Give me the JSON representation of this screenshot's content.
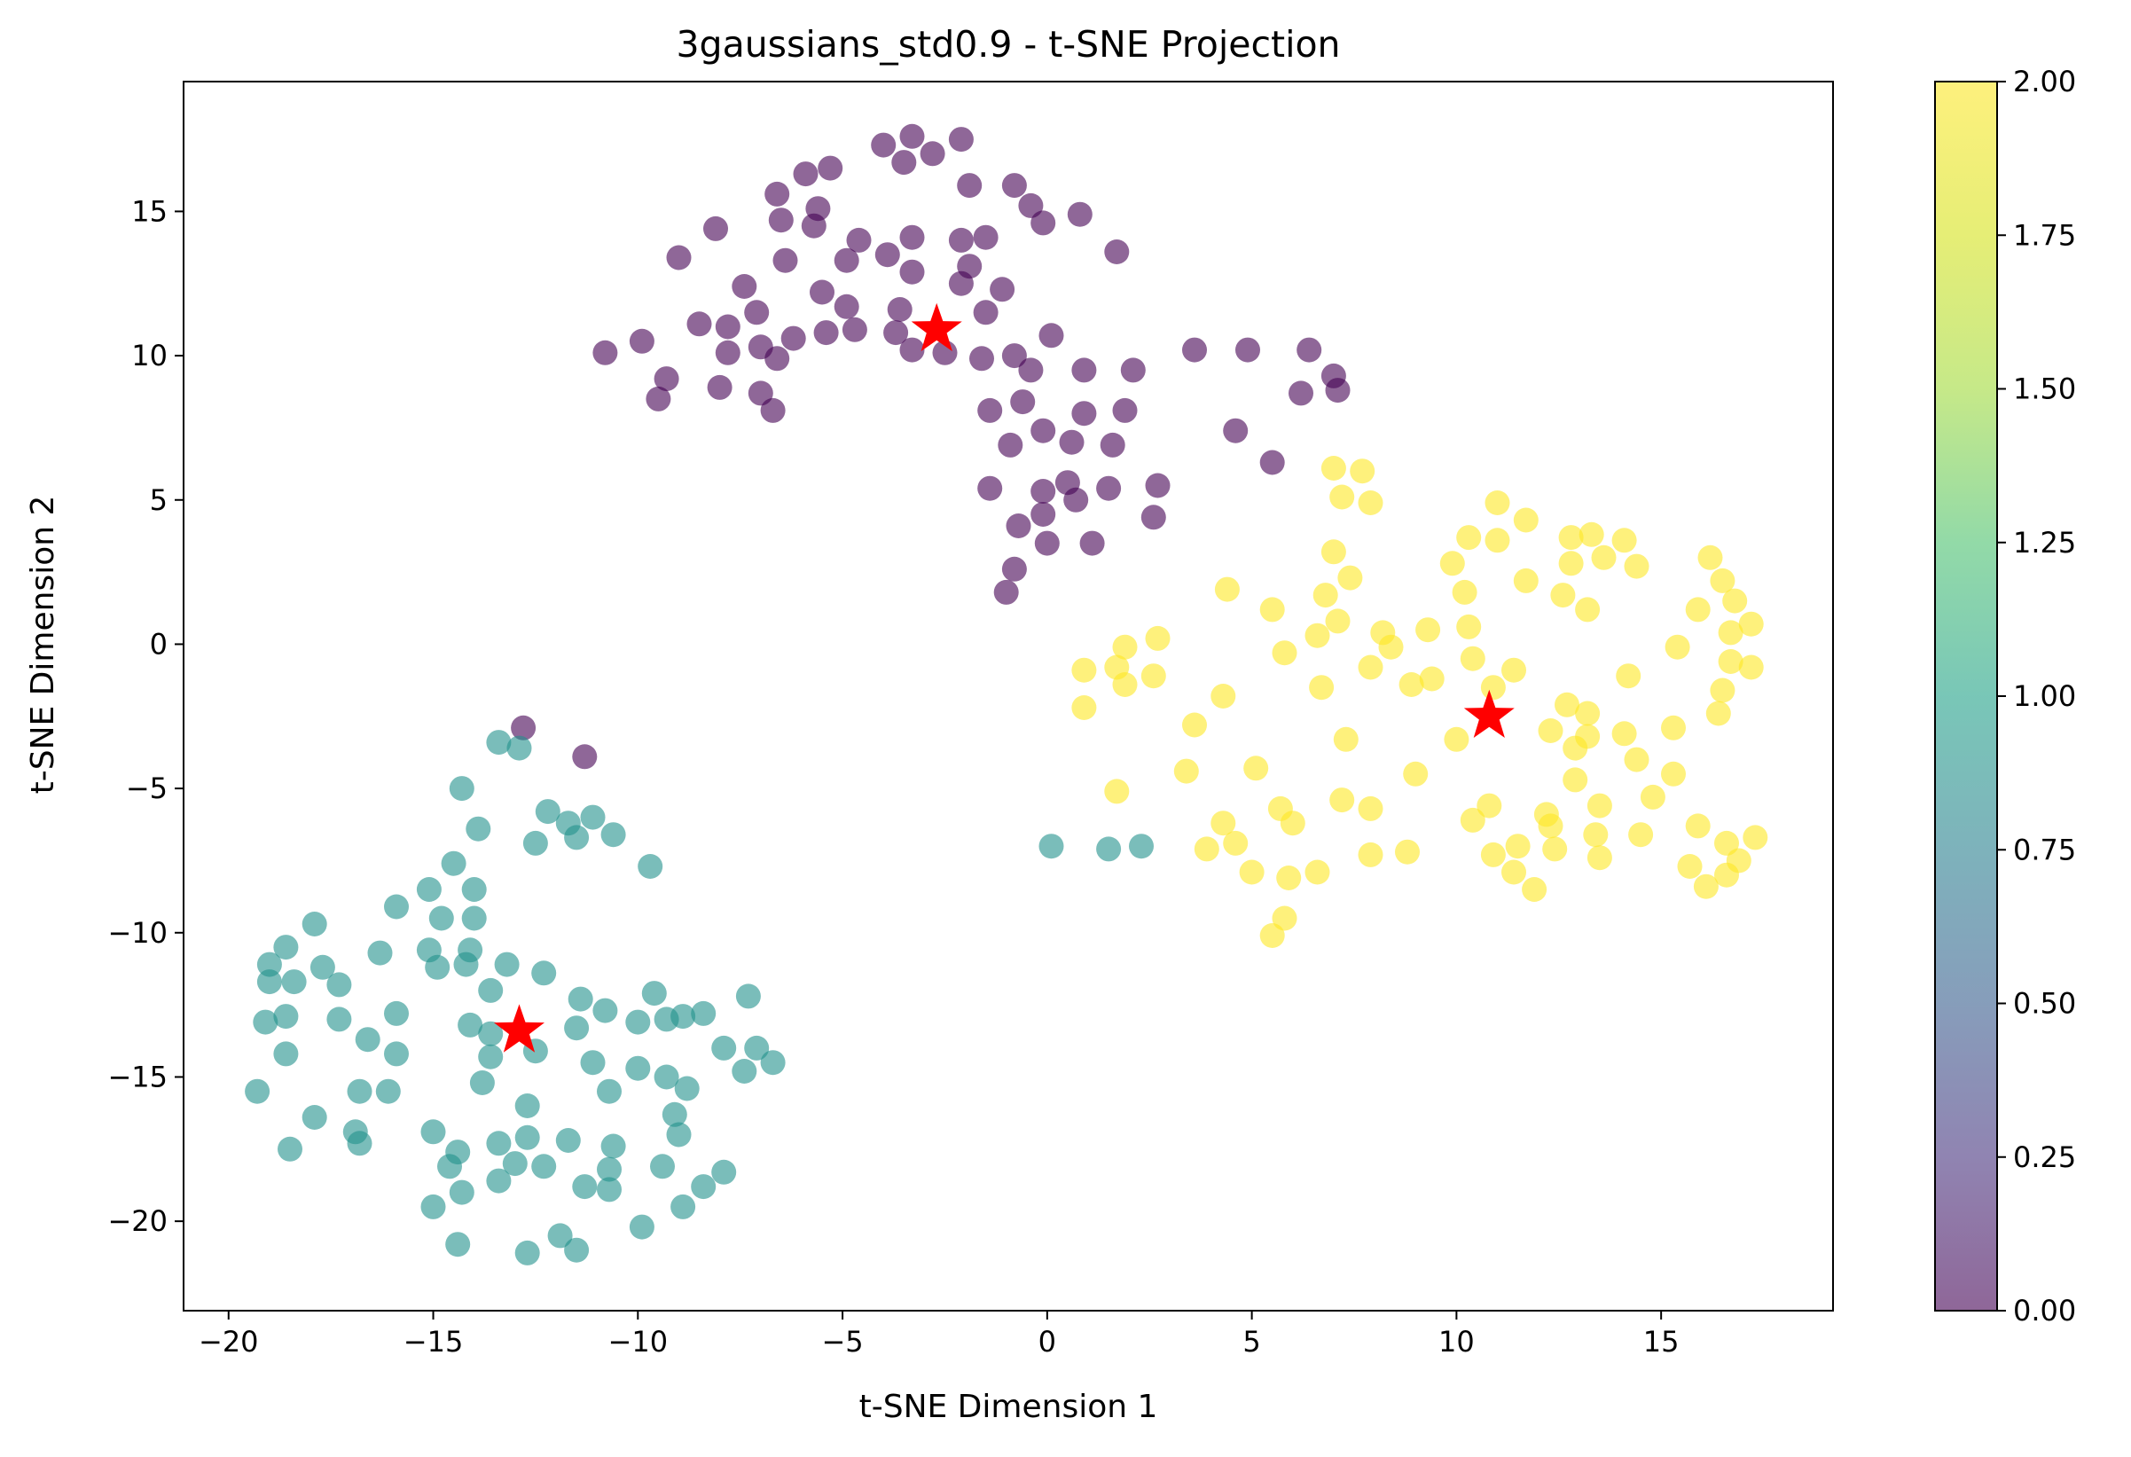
{
  "chart_data": {
    "type": "scatter",
    "title": "3gaussians_std0.9 - t-SNE Projection",
    "xlabel": "t-SNE Dimension 1",
    "ylabel": "t-SNE Dimension 2",
    "xlim": [
      -21.1,
      19.2
    ],
    "ylim": [
      -23.1,
      19.5
    ],
    "xticks": [
      -20,
      -15,
      -10,
      -5,
      0,
      5,
      10,
      15
    ],
    "yticks": [
      -20,
      -15,
      -10,
      -5,
      0,
      5,
      10,
      15
    ],
    "grid": false,
    "colormap": "viridis",
    "colorbar": {
      "range": [
        0.0,
        2.0
      ],
      "ticks": [
        "0.00",
        "0.25",
        "0.50",
        "0.75",
        "1.00",
        "1.25",
        "1.50",
        "1.75",
        "2.00"
      ]
    },
    "series": [
      {
        "value": 0,
        "color": "#440154",
        "points": [
          [
            -4.0,
            17.3
          ],
          [
            -3.3,
            17.6
          ],
          [
            -2.1,
            17.5
          ],
          [
            -3.5,
            16.7
          ],
          [
            -2.8,
            17.0
          ],
          [
            -5.3,
            16.5
          ],
          [
            -5.9,
            16.3
          ],
          [
            -6.6,
            15.6
          ],
          [
            -5.6,
            15.1
          ],
          [
            -6.5,
            14.7
          ],
          [
            -5.7,
            14.5
          ],
          [
            -8.1,
            14.4
          ],
          [
            -9.0,
            13.4
          ],
          [
            -6.4,
            13.3
          ],
          [
            -4.6,
            14.0
          ],
          [
            -3.3,
            14.1
          ],
          [
            -3.9,
            13.5
          ],
          [
            -4.9,
            13.3
          ],
          [
            -3.3,
            12.9
          ],
          [
            -2.1,
            14.0
          ],
          [
            -1.5,
            14.1
          ],
          [
            -1.9,
            13.1
          ],
          [
            -2.1,
            12.5
          ],
          [
            -1.1,
            12.3
          ],
          [
            -1.9,
            15.9
          ],
          [
            -0.8,
            15.9
          ],
          [
            -0.4,
            15.2
          ],
          [
            -0.1,
            14.6
          ],
          [
            0.8,
            14.9
          ],
          [
            1.7,
            13.6
          ],
          [
            -5.5,
            12.2
          ],
          [
            -4.9,
            11.7
          ],
          [
            -7.4,
            12.4
          ],
          [
            -7.1,
            11.5
          ],
          [
            -3.6,
            11.6
          ],
          [
            -3.7,
            10.8
          ],
          [
            -4.7,
            10.9
          ],
          [
            -5.4,
            10.8
          ],
          [
            -7.8,
            11.0
          ],
          [
            -8.5,
            11.1
          ],
          [
            -7.0,
            10.3
          ],
          [
            -6.2,
            10.6
          ],
          [
            -6.6,
            9.9
          ],
          [
            -7.8,
            10.1
          ],
          [
            -9.9,
            10.5
          ],
          [
            -10.8,
            10.1
          ],
          [
            -9.3,
            9.2
          ],
          [
            -9.5,
            8.5
          ],
          [
            -8.0,
            8.9
          ],
          [
            -7.0,
            8.7
          ],
          [
            -6.7,
            8.1
          ],
          [
            -3.3,
            10.2
          ],
          [
            -2.5,
            10.1
          ],
          [
            -1.5,
            11.5
          ],
          [
            -0.8,
            10.0
          ],
          [
            -0.4,
            9.5
          ],
          [
            0.1,
            10.7
          ],
          [
            0.9,
            9.5
          ],
          [
            2.1,
            9.5
          ],
          [
            3.6,
            10.2
          ],
          [
            4.9,
            10.2
          ],
          [
            6.4,
            10.2
          ],
          [
            7.0,
            9.3
          ],
          [
            7.1,
            8.8
          ],
          [
            6.2,
            8.7
          ],
          [
            -1.6,
            9.9
          ],
          [
            -0.6,
            8.4
          ],
          [
            -1.4,
            8.1
          ],
          [
            -0.1,
            7.4
          ],
          [
            0.9,
            8.0
          ],
          [
            1.9,
            8.1
          ],
          [
            -0.9,
            6.9
          ],
          [
            0.6,
            7.0
          ],
          [
            1.6,
            6.9
          ],
          [
            4.6,
            7.4
          ],
          [
            5.5,
            6.3
          ],
          [
            -1.4,
            5.4
          ],
          [
            -0.1,
            5.3
          ],
          [
            0.5,
            5.6
          ],
          [
            0.7,
            5.0
          ],
          [
            1.5,
            5.4
          ],
          [
            2.7,
            5.5
          ],
          [
            2.6,
            4.4
          ],
          [
            -0.7,
            4.1
          ],
          [
            -0.1,
            4.5
          ],
          [
            0.0,
            3.5
          ],
          [
            1.1,
            3.5
          ],
          [
            -0.8,
            2.6
          ],
          [
            -1.0,
            1.8
          ],
          [
            -12.8,
            -2.9
          ],
          [
            -11.3,
            -3.9
          ]
        ]
      },
      {
        "value": 1,
        "color": "#21918c",
        "points": [
          [
            -13.4,
            -3.4
          ],
          [
            -12.9,
            -3.6
          ],
          [
            -14.3,
            -5.0
          ],
          [
            -13.9,
            -6.4
          ],
          [
            -12.2,
            -5.8
          ],
          [
            -11.7,
            -6.2
          ],
          [
            -11.5,
            -6.7
          ],
          [
            -11.1,
            -6.0
          ],
          [
            -10.6,
            -6.6
          ],
          [
            -12.5,
            -6.9
          ],
          [
            -9.7,
            -7.7
          ],
          [
            -14.5,
            -7.6
          ],
          [
            -14.0,
            -8.5
          ],
          [
            -15.1,
            -8.5
          ],
          [
            -15.9,
            -9.1
          ],
          [
            -14.8,
            -9.5
          ],
          [
            -14.0,
            -9.5
          ],
          [
            -17.9,
            -9.7
          ],
          [
            -18.6,
            -10.5
          ],
          [
            -19.0,
            -11.1
          ],
          [
            -18.4,
            -11.7
          ],
          [
            -19.0,
            -11.7
          ],
          [
            -17.7,
            -11.2
          ],
          [
            -17.3,
            -11.8
          ],
          [
            -16.3,
            -10.7
          ],
          [
            -15.1,
            -10.6
          ],
          [
            -14.9,
            -11.2
          ],
          [
            -14.1,
            -10.6
          ],
          [
            -14.2,
            -11.1
          ],
          [
            -13.2,
            -11.1
          ],
          [
            -12.3,
            -11.4
          ],
          [
            -13.6,
            -12.0
          ],
          [
            -11.4,
            -12.3
          ],
          [
            -10.8,
            -12.7
          ],
          [
            -11.5,
            -13.3
          ],
          [
            -9.6,
            -12.1
          ],
          [
            -8.9,
            -12.9
          ],
          [
            -8.4,
            -12.8
          ],
          [
            -7.3,
            -12.2
          ],
          [
            -15.9,
            -12.8
          ],
          [
            -16.6,
            -13.7
          ],
          [
            -17.3,
            -13.0
          ],
          [
            -18.6,
            -12.9
          ],
          [
            -19.1,
            -13.1
          ],
          [
            -14.1,
            -13.2
          ],
          [
            -13.6,
            -13.5
          ],
          [
            -13.6,
            -14.3
          ],
          [
            -12.5,
            -14.1
          ],
          [
            -11.1,
            -14.5
          ],
          [
            -10.0,
            -13.1
          ],
          [
            -9.3,
            -13.0
          ],
          [
            -7.9,
            -14.0
          ],
          [
            -7.1,
            -14.0
          ],
          [
            -6.7,
            -14.5
          ],
          [
            -7.4,
            -14.8
          ],
          [
            -18.6,
            -14.2
          ],
          [
            -15.9,
            -14.2
          ],
          [
            -10.0,
            -14.7
          ],
          [
            -9.3,
            -15.0
          ],
          [
            -13.8,
            -15.2
          ],
          [
            -10.7,
            -15.5
          ],
          [
            -8.8,
            -15.4
          ],
          [
            -9.1,
            -16.3
          ],
          [
            -19.3,
            -15.5
          ],
          [
            -16.8,
            -15.5
          ],
          [
            -16.1,
            -15.5
          ],
          [
            -12.7,
            -16.0
          ],
          [
            -17.9,
            -16.4
          ],
          [
            -15.0,
            -16.9
          ],
          [
            -16.9,
            -16.9
          ],
          [
            -16.8,
            -17.3
          ],
          [
            -18.5,
            -17.5
          ],
          [
            -14.4,
            -17.6
          ],
          [
            -13.4,
            -17.3
          ],
          [
            -12.7,
            -17.1
          ],
          [
            -11.7,
            -17.2
          ],
          [
            -10.6,
            -17.4
          ],
          [
            -9.0,
            -17.0
          ],
          [
            -14.6,
            -18.1
          ],
          [
            -13.0,
            -18.0
          ],
          [
            -12.3,
            -18.1
          ],
          [
            -10.7,
            -18.2
          ],
          [
            -9.4,
            -18.1
          ],
          [
            -7.9,
            -18.3
          ],
          [
            -14.3,
            -19.0
          ],
          [
            -13.4,
            -18.6
          ],
          [
            -11.3,
            -18.8
          ],
          [
            -10.7,
            -18.9
          ],
          [
            -8.4,
            -18.8
          ],
          [
            -15.0,
            -19.5
          ],
          [
            -8.9,
            -19.5
          ],
          [
            -11.9,
            -20.5
          ],
          [
            -9.9,
            -20.2
          ],
          [
            -14.4,
            -20.8
          ],
          [
            -12.7,
            -21.1
          ],
          [
            -11.5,
            -21.0
          ],
          [
            0.1,
            -7.0
          ],
          [
            1.5,
            -7.1
          ],
          [
            2.3,
            -7.0
          ]
        ]
      },
      {
        "value": 2,
        "color": "#fde725",
        "points": [
          [
            7.0,
            6.1
          ],
          [
            7.7,
            6.0
          ],
          [
            7.2,
            5.1
          ],
          [
            7.9,
            4.9
          ],
          [
            7.0,
            3.2
          ],
          [
            7.4,
            2.3
          ],
          [
            6.8,
            1.7
          ],
          [
            4.4,
            1.9
          ],
          [
            5.5,
            1.2
          ],
          [
            7.1,
            0.8
          ],
          [
            6.6,
            0.3
          ],
          [
            5.8,
            -0.3
          ],
          [
            8.2,
            0.4
          ],
          [
            8.4,
            -0.1
          ],
          [
            9.3,
            0.5
          ],
          [
            10.2,
            1.8
          ],
          [
            10.3,
            0.6
          ],
          [
            9.9,
            2.8
          ],
          [
            10.3,
            3.7
          ],
          [
            11.0,
            3.6
          ],
          [
            11.0,
            4.9
          ],
          [
            11.7,
            4.3
          ],
          [
            11.7,
            2.2
          ],
          [
            12.6,
            1.7
          ],
          [
            12.8,
            2.8
          ],
          [
            12.8,
            3.7
          ],
          [
            13.3,
            3.8
          ],
          [
            13.6,
            3.0
          ],
          [
            14.1,
            3.6
          ],
          [
            14.4,
            2.7
          ],
          [
            13.2,
            1.2
          ],
          [
            14.2,
            -1.1
          ],
          [
            15.4,
            -0.1
          ],
          [
            15.9,
            1.2
          ],
          [
            16.2,
            3.0
          ],
          [
            16.5,
            2.2
          ],
          [
            16.8,
            1.5
          ],
          [
            17.2,
            0.7
          ],
          [
            16.7,
            0.4
          ],
          [
            16.7,
            -0.6
          ],
          [
            17.2,
            -0.8
          ],
          [
            16.5,
            -1.6
          ],
          [
            16.4,
            -2.4
          ],
          [
            15.3,
            -2.9
          ],
          [
            14.1,
            -3.1
          ],
          [
            14.4,
            -4.0
          ],
          [
            15.3,
            -4.5
          ],
          [
            14.8,
            -5.3
          ],
          [
            13.5,
            -5.6
          ],
          [
            12.9,
            -4.7
          ],
          [
            12.9,
            -3.6
          ],
          [
            13.2,
            -3.2
          ],
          [
            13.2,
            -2.4
          ],
          [
            12.7,
            -2.1
          ],
          [
            12.3,
            -3.0
          ],
          [
            10.9,
            -1.5
          ],
          [
            11.4,
            -0.9
          ],
          [
            10.4,
            -0.5
          ],
          [
            10.0,
            -3.3
          ],
          [
            7.9,
            -0.8
          ],
          [
            8.9,
            -1.4
          ],
          [
            9.4,
            -1.2
          ],
          [
            6.7,
            -1.5
          ],
          [
            7.3,
            -3.3
          ],
          [
            4.3,
            -1.8
          ],
          [
            3.6,
            -2.8
          ],
          [
            2.7,
            0.2
          ],
          [
            1.9,
            -0.1
          ],
          [
            1.7,
            -0.8
          ],
          [
            1.9,
            -1.4
          ],
          [
            2.6,
            -1.1
          ],
          [
            0.9,
            -0.9
          ],
          [
            0.9,
            -2.2
          ],
          [
            3.4,
            -4.4
          ],
          [
            5.1,
            -4.3
          ],
          [
            1.7,
            -5.1
          ],
          [
            9.0,
            -4.5
          ],
          [
            12.2,
            -5.9
          ],
          [
            12.3,
            -6.3
          ],
          [
            13.4,
            -6.6
          ],
          [
            14.5,
            -6.6
          ],
          [
            15.9,
            -6.3
          ],
          [
            16.6,
            -6.9
          ],
          [
            17.3,
            -6.7
          ],
          [
            16.9,
            -7.5
          ],
          [
            16.6,
            -8.0
          ],
          [
            16.1,
            -8.4
          ],
          [
            15.7,
            -7.7
          ],
          [
            13.5,
            -7.4
          ],
          [
            12.4,
            -7.1
          ],
          [
            11.5,
            -7.0
          ],
          [
            11.4,
            -7.9
          ],
          [
            10.9,
            -7.3
          ],
          [
            11.9,
            -8.5
          ],
          [
            10.8,
            -5.6
          ],
          [
            10.4,
            -6.1
          ],
          [
            7.2,
            -5.4
          ],
          [
            7.9,
            -5.7
          ],
          [
            5.7,
            -5.7
          ],
          [
            6.0,
            -6.2
          ],
          [
            4.3,
            -6.2
          ],
          [
            3.9,
            -7.1
          ],
          [
            4.6,
            -6.9
          ],
          [
            5.0,
            -7.9
          ],
          [
            5.9,
            -8.1
          ],
          [
            6.6,
            -7.9
          ],
          [
            7.9,
            -7.3
          ],
          [
            8.8,
            -7.2
          ],
          [
            5.8,
            -9.5
          ],
          [
            5.5,
            -10.1
          ]
        ]
      }
    ],
    "centroids": {
      "marker": "star",
      "color": "#ff0000",
      "points": [
        [
          -2.7,
          10.9
        ],
        [
          -12.9,
          -13.4
        ],
        [
          10.8,
          -2.5
        ]
      ]
    }
  }
}
